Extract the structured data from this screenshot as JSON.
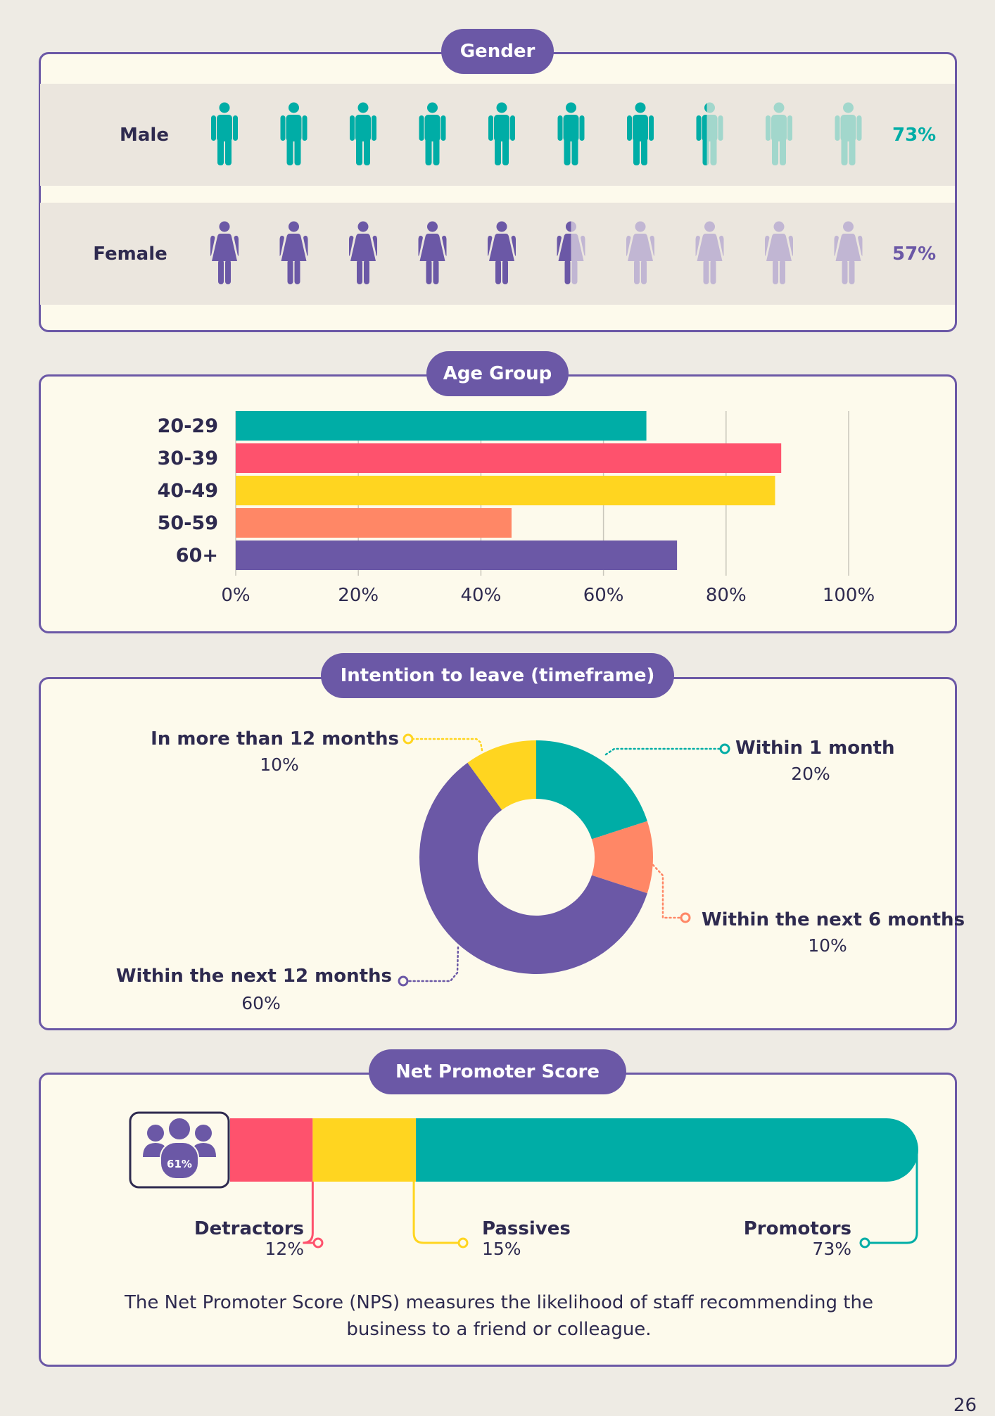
{
  "colors": {
    "purple": "#6b58a6",
    "teal": "#00ada6",
    "teal_light": "#a2d7cc",
    "purple_light": "#c1b6d3",
    "pink": "#fe526d",
    "yellow": "#ffd520",
    "coral": "#ff8766",
    "ink": "#2e2a4f"
  },
  "gender": {
    "title": "Gender",
    "rows": [
      {
        "label": "Male",
        "value": 73,
        "display": "73%",
        "icon": "male-person-icon"
      },
      {
        "label": "Female",
        "value": 57,
        "display": "57%",
        "icon": "female-person-icon"
      }
    ]
  },
  "age_group": {
    "title": "Age Group"
  },
  "intention": {
    "title": "Intention to leave (timeframe)"
  },
  "nps": {
    "title": "Net Promoter Score",
    "score_label": "61%",
    "icon": "people-group-icon",
    "description": "The Net Promoter Score (NPS) measures the likelihood of staff recommending the business to a friend or colleague."
  },
  "page_number": "26",
  "chart_data": [
    {
      "type": "pictograph",
      "title": "Gender",
      "categories": [
        "Male",
        "Female"
      ],
      "values": [
        73,
        57
      ],
      "unit": "%"
    },
    {
      "type": "bar",
      "orientation": "horizontal",
      "title": "Age Group",
      "categories": [
        "20-29",
        "30-39",
        "40-49",
        "50-59",
        "60+"
      ],
      "values": [
        67,
        89,
        88,
        45,
        72
      ],
      "xlim": [
        0,
        100
      ],
      "ticks": [
        "0%",
        "20%",
        "40%",
        "60%",
        "80%",
        "100%"
      ],
      "grid": true
    },
    {
      "type": "pie",
      "variant": "donut",
      "title": "Intention to leave (timeframe)",
      "slices": [
        {
          "label": "Within 1 month",
          "value": 20,
          "display": "20%"
        },
        {
          "label": "Within the next 6 months",
          "value": 10,
          "display": "10%"
        },
        {
          "label": "Within the next 12 months",
          "value": 60,
          "display": "60%"
        },
        {
          "label": "In more than 12 months",
          "value": 10,
          "display": "10%"
        }
      ]
    },
    {
      "type": "bar",
      "variant": "stacked",
      "title": "Net Promoter Score",
      "segments": [
        {
          "label": "Detractors",
          "value": 12,
          "display": "12%"
        },
        {
          "label": "Passives",
          "value": 15,
          "display": "15%"
        },
        {
          "label": "Promotors",
          "value": 73,
          "display": "73%"
        }
      ]
    }
  ]
}
